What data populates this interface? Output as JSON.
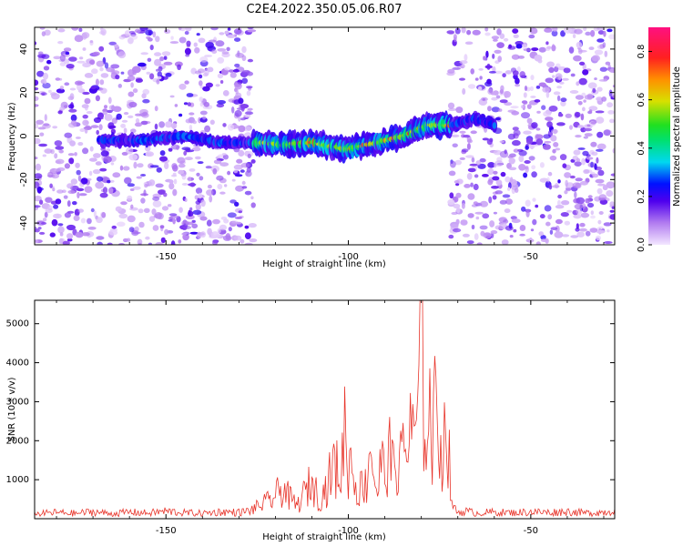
{
  "title": "C2E4.2022.350.05.06.R07",
  "colors": {
    "snr_line": "#e8352b",
    "frame": "#000000"
  },
  "chart_data": [
    {
      "type": "heatmap",
      "xlabel": "Height of straight line (km)",
      "ylabel": "Frequency (Hz)",
      "xlim": [
        -186,
        -27
      ],
      "ylim": [
        -50,
        50
      ],
      "xticks": [
        -150,
        -100,
        -50
      ],
      "yticks": [
        -40,
        -20,
        0,
        20,
        40
      ],
      "grid": false,
      "colorbar": {
        "label": "Normalized spectral amplitude",
        "range": [
          0.0,
          0.9
        ],
        "ticks": [
          0.0,
          0.2,
          0.4,
          0.6,
          0.8
        ],
        "colormap": "rainbow (purple to red)"
      },
      "ridge": {
        "x": [
          -168,
          -155,
          -145,
          -135,
          -125,
          -118,
          -110,
          -100,
          -92,
          -85,
          -78,
          -72,
          -65,
          -60
        ],
        "y": [
          -2,
          -2,
          0,
          -3,
          -3,
          -4,
          -3,
          -6,
          -3,
          0,
          5,
          5,
          8,
          5
        ]
      },
      "noise_background": {
        "x_ranges": [
          [
            -186,
            -126
          ],
          [
            -72,
            -27
          ]
        ]
      }
    },
    {
      "type": "line",
      "xlabel": "Height of straight line (km)",
      "ylabel": "SNR (10 * v/v)",
      "xlim": [
        -186,
        -27
      ],
      "ylim": [
        0,
        5600
      ],
      "xticks": [
        -150,
        -100,
        -50
      ],
      "yticks": [
        1000,
        2000,
        3000,
        4000,
        5000
      ],
      "grid": false,
      "series": [
        {
          "x": [
            -186,
            -180,
            -175,
            -170,
            -165,
            -160,
            -155,
            -150,
            -145,
            -140,
            -135,
            -130,
            -127,
            -123,
            -120,
            -118,
            -116,
            -114,
            -112,
            -110,
            -108,
            -106,
            -104,
            -102,
            -101,
            -100,
            -99,
            -98,
            -97,
            -96,
            -95,
            -94,
            -93,
            -92,
            -91,
            -90,
            -89,
            -88,
            -87,
            -86,
            -85,
            -84,
            -83,
            -82,
            -81,
            -80,
            -79,
            -78,
            -77,
            -76,
            -75,
            -74,
            -73,
            -72,
            -71,
            -70,
            -68,
            -65,
            -60,
            -55,
            -50,
            -45,
            -40,
            -35,
            -30,
            -27
          ],
          "y": [
            150,
            200,
            170,
            220,
            160,
            210,
            180,
            240,
            190,
            170,
            220,
            200,
            250,
            500,
            800,
            1100,
            700,
            450,
            900,
            1300,
            700,
            1100,
            1900,
            1500,
            3300,
            1800,
            2100,
            1200,
            900,
            1400,
            1100,
            2900,
            1600,
            800,
            2200,
            1300,
            2600,
            1700,
            2400,
            1500,
            3000,
            2100,
            3600,
            2300,
            4100,
            5600,
            3100,
            4500,
            2500,
            4100,
            3200,
            2200,
            4000,
            900,
            300,
            200,
            240,
            180,
            210,
            190,
            220,
            200,
            230,
            180,
            210,
            250
          ]
        }
      ]
    }
  ]
}
